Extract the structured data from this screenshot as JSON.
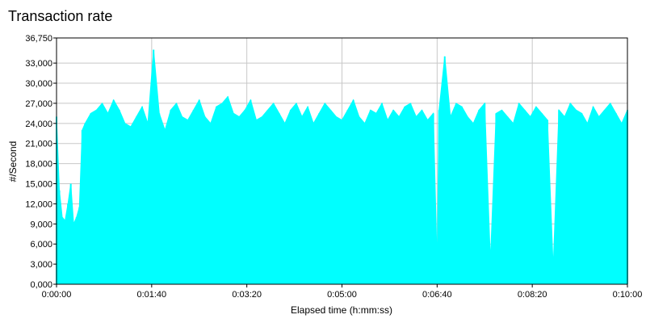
{
  "chart_data": {
    "type": "area",
    "title": "Transaction rate",
    "xlabel": "Elapsed time (h:mm:ss)",
    "ylabel": "#/Second",
    "colors": {
      "series": "#00FFFF",
      "grid": "#C8C8C8",
      "axis": "#000000"
    },
    "grid": true,
    "xlim": [
      0,
      600
    ],
    "ylim": [
      0,
      36750
    ],
    "xticks": [
      0,
      100,
      200,
      300,
      400,
      500,
      600
    ],
    "xtick_labels": [
      "0:00:00",
      "0:01:40",
      "0:03:20",
      "0:05:00",
      "0:06:40",
      "0:08:20",
      "0:10:00"
    ],
    "yticks": [
      0,
      3000,
      6000,
      9000,
      12000,
      15000,
      18000,
      21000,
      24000,
      27000,
      30000,
      33000,
      36750
    ],
    "ytick_labels": [
      "0,000",
      "3,000",
      "6,000",
      "9,000",
      "12,000",
      "15,000",
      "18,000",
      "21,000",
      "24,000",
      "27,000",
      "30,000",
      "33,000",
      "36,750"
    ],
    "series": [
      {
        "x": [
          0,
          3,
          6,
          9,
          12,
          15,
          18,
          21,
          24,
          27,
          30,
          36,
          42,
          48,
          54,
          60,
          66,
          72,
          78,
          84,
          90,
          96,
          102,
          108,
          114,
          120,
          126,
          132,
          138,
          144,
          150,
          156,
          162,
          168,
          174,
          180,
          186,
          192,
          198,
          204,
          210,
          216,
          222,
          228,
          234,
          240,
          246,
          252,
          258,
          264,
          270,
          276,
          282,
          288,
          294,
          300,
          306,
          312,
          318,
          324,
          330,
          336,
          342,
          348,
          354,
          360,
          366,
          372,
          378,
          384,
          390,
          396,
          400,
          402,
          408,
          414,
          420,
          426,
          432,
          438,
          444,
          450,
          456,
          462,
          468,
          474,
          480,
          486,
          492,
          498,
          504,
          510,
          516,
          522,
          528,
          534,
          540,
          546,
          552,
          558,
          564,
          570,
          576,
          582,
          588,
          594,
          600
        ],
        "y": [
          25000,
          14000,
          10000,
          9500,
          12000,
          15000,
          9000,
          10000,
          11500,
          23000,
          24000,
          25500,
          26000,
          27000,
          25500,
          27500,
          26000,
          24000,
          23500,
          25000,
          26500,
          24000,
          35000,
          25500,
          23000,
          26000,
          27000,
          25000,
          24500,
          26000,
          27500,
          25000,
          24000,
          26500,
          27000,
          28000,
          25500,
          25000,
          26000,
          27500,
          24500,
          25000,
          26000,
          27000,
          25500,
          24000,
          26000,
          27000,
          25000,
          26500,
          24000,
          25500,
          27000,
          26000,
          25000,
          24500,
          26000,
          27500,
          25000,
          24000,
          26000,
          25500,
          27000,
          24500,
          26000,
          25000,
          26500,
          27000,
          25000,
          26000,
          24500,
          25500,
          3000,
          26000,
          34000,
          25000,
          27000,
          26500,
          25000,
          24000,
          26000,
          27000,
          3500,
          25500,
          26000,
          25000,
          24000,
          27000,
          26000,
          25000,
          26500,
          25500,
          24500,
          2500,
          26000,
          25000,
          27000,
          26000,
          25500,
          24000,
          26500,
          25000,
          26000,
          27000,
          25500,
          24000,
          26000
        ]
      }
    ]
  }
}
